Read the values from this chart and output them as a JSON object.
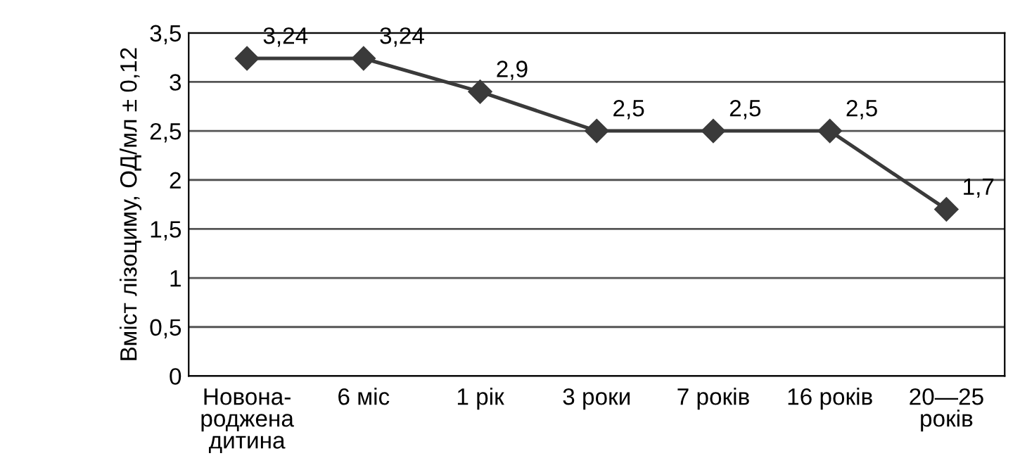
{
  "chart_data": {
    "type": "line",
    "ylabel": "Вміст лізоциму, ОД/мл ± 0,12",
    "categories": [
      "Новона-\nроджена\nдитина",
      "6 міс",
      "1 рік",
      "3 роки",
      "7 років",
      "16 років",
      "20—25\nроків"
    ],
    "series": [
      {
        "color": "#3a3a3a",
        "values": [
          3.24,
          3.24,
          2.9,
          2.5,
          2.5,
          2.5,
          1.7
        ],
        "value_labels": [
          "3,24",
          "3,24",
          "2,9",
          "2,5",
          "2,5",
          "2,5",
          "1,7"
        ]
      }
    ],
    "ylim": [
      0,
      3.5
    ],
    "yticks": [
      0,
      {
        "value": 0.5,
        "label": "0,5"
      },
      1,
      {
        "value": 1.5,
        "label": "1,5"
      },
      2,
      {
        "value": 2.5,
        "label": "2,5"
      },
      3,
      {
        "value": 3.5,
        "label": "3,5"
      }
    ],
    "grid": "y",
    "marker": "diamond",
    "line_style": "solid"
  }
}
